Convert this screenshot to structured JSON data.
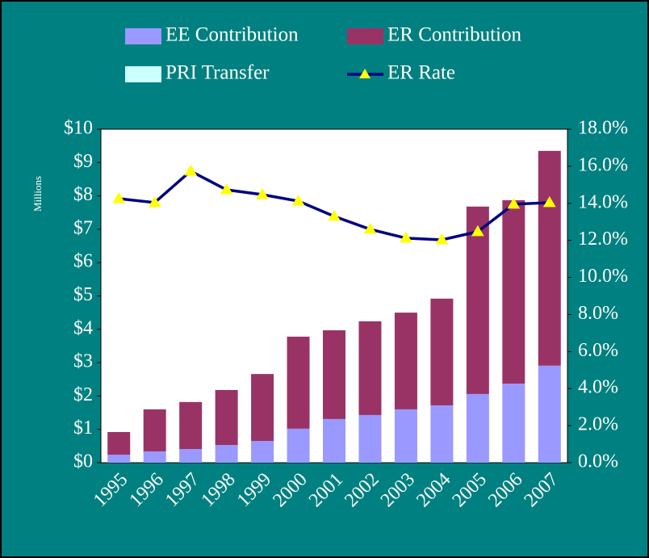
{
  "chart_data": {
    "type": "bar",
    "y_label": "Millions",
    "categories": [
      "1995",
      "1996",
      "1997",
      "1998",
      "1999",
      "2000",
      "2001",
      "2002",
      "2003",
      "2004",
      "2005",
      "2006",
      "2007"
    ],
    "series": [
      {
        "name": "EE Contribution",
        "color": "#9999ff",
        "values": [
          0.24,
          0.34,
          0.41,
          0.53,
          0.65,
          1.02,
          1.31,
          1.43,
          1.6,
          1.72,
          2.06,
          2.37,
          2.91
        ]
      },
      {
        "name": "ER Contribution",
        "color": "#993366",
        "values": [
          0.68,
          1.26,
          1.41,
          1.65,
          2.01,
          2.76,
          2.66,
          2.81,
          2.9,
          3.2,
          5.62,
          5.5,
          6.44
        ]
      },
      {
        "name": "PRI Transfer",
        "color": "#ccffff",
        "values": [
          0,
          0,
          0,
          0,
          0,
          0,
          0,
          0,
          0,
          0,
          0,
          0,
          0
        ]
      },
      {
        "name": "ER Rate",
        "type": "line",
        "axis": "y2",
        "color": "#000080",
        "marker_color": "#ffff00",
        "values": [
          14.25,
          14.04,
          15.74,
          14.73,
          14.47,
          14.12,
          13.3,
          12.6,
          12.12,
          12.03,
          12.47,
          13.95,
          14.04
        ]
      }
    ],
    "stacked": true,
    "ylim": [
      0,
      10
    ],
    "yticks": [
      {
        "value": 0,
        "label": "$0"
      },
      {
        "value": 1,
        "label": "$1"
      },
      {
        "value": 2,
        "label": "$2"
      },
      {
        "value": 3,
        "label": "$3"
      },
      {
        "value": 4,
        "label": "$4"
      },
      {
        "value": 5,
        "label": "$5"
      },
      {
        "value": 6,
        "label": "$6"
      },
      {
        "value": 7,
        "label": "$7"
      },
      {
        "value": 8,
        "label": "$8"
      },
      {
        "value": 9,
        "label": "$9"
      },
      {
        "value": 10,
        "label": "$10"
      }
    ],
    "y2lim": [
      0,
      18
    ],
    "y2ticks": [
      {
        "value": 0,
        "label": "0.0%"
      },
      {
        "value": 2,
        "label": "2.0%"
      },
      {
        "value": 4,
        "label": "4.0%"
      },
      {
        "value": 6,
        "label": "6.0%"
      },
      {
        "value": 8,
        "label": "8.0%"
      },
      {
        "value": 10,
        "label": "10.0%"
      },
      {
        "value": 12,
        "label": "12.0%"
      },
      {
        "value": 14,
        "label": "14.0%"
      },
      {
        "value": 16,
        "label": "16.0%"
      },
      {
        "value": 18,
        "label": "18.0%"
      }
    ],
    "legend": "top"
  }
}
